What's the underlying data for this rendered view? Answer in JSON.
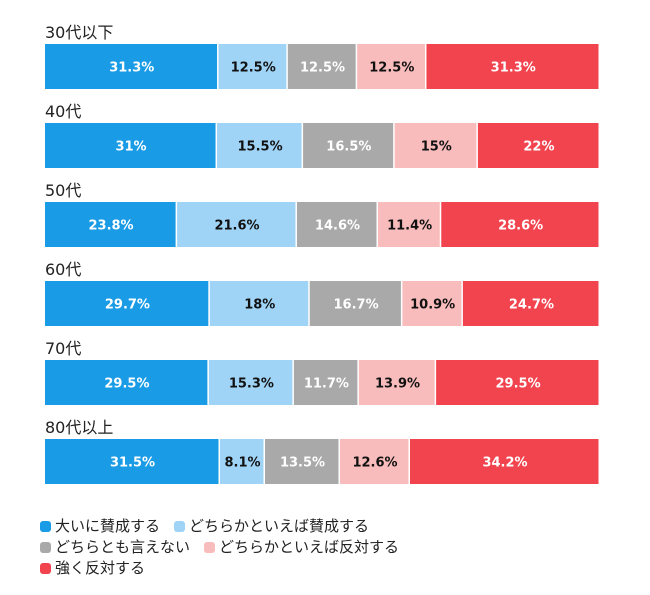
{
  "chart_data": {
    "type": "bar",
    "orientation": "horizontal-stacked-100",
    "categories": [
      "30代以下",
      "40代",
      "50代",
      "60代",
      "70代",
      "80代以上"
    ],
    "series": [
      {
        "name": "大いに賛成する",
        "color": "#1a9be6",
        "label_color": "#ffffff",
        "values": [
          31.3,
          31,
          23.8,
          29.7,
          29.5,
          31.5
        ],
        "labels": [
          "31.3%",
          "31%",
          "23.8%",
          "29.7%",
          "29.5%",
          "31.5%"
        ]
      },
      {
        "name": "どちらかといえば賛成する",
        "color": "#9fd4f7",
        "label_color": "#111111",
        "values": [
          12.5,
          15.5,
          21.6,
          18,
          15.3,
          8.1
        ],
        "labels": [
          "12.5%",
          "15.5%",
          "21.6%",
          "18%",
          "15.3%",
          "8.1%"
        ]
      },
      {
        "name": "どちらとも言えない",
        "color": "#a9a9a9",
        "label_color": "#ffffff",
        "values": [
          12.5,
          16.5,
          14.6,
          16.7,
          11.7,
          13.5
        ],
        "labels": [
          "12.5%",
          "16.5%",
          "14.6%",
          "16.7%",
          "11.7%",
          "13.5%"
        ]
      },
      {
        "name": "どちらかといえば反対する",
        "color": "#f8bcbc",
        "label_color": "#111111",
        "values": [
          12.5,
          15,
          11.4,
          10.9,
          13.9,
          12.6
        ],
        "labels": [
          "12.5%",
          "15%",
          "11.4%",
          "10.9%",
          "13.9%",
          "12.6%"
        ]
      },
      {
        "name": "強く反対する",
        "color": "#f2444f",
        "label_color": "#ffffff",
        "values": [
          31.3,
          22,
          28.6,
          24.7,
          29.5,
          34.2
        ],
        "labels": [
          "31.3%",
          "22%",
          "28.6%",
          "24.7%",
          "29.5%",
          "34.2%"
        ]
      }
    ],
    "legend_position": "bottom-left",
    "grid": false
  }
}
